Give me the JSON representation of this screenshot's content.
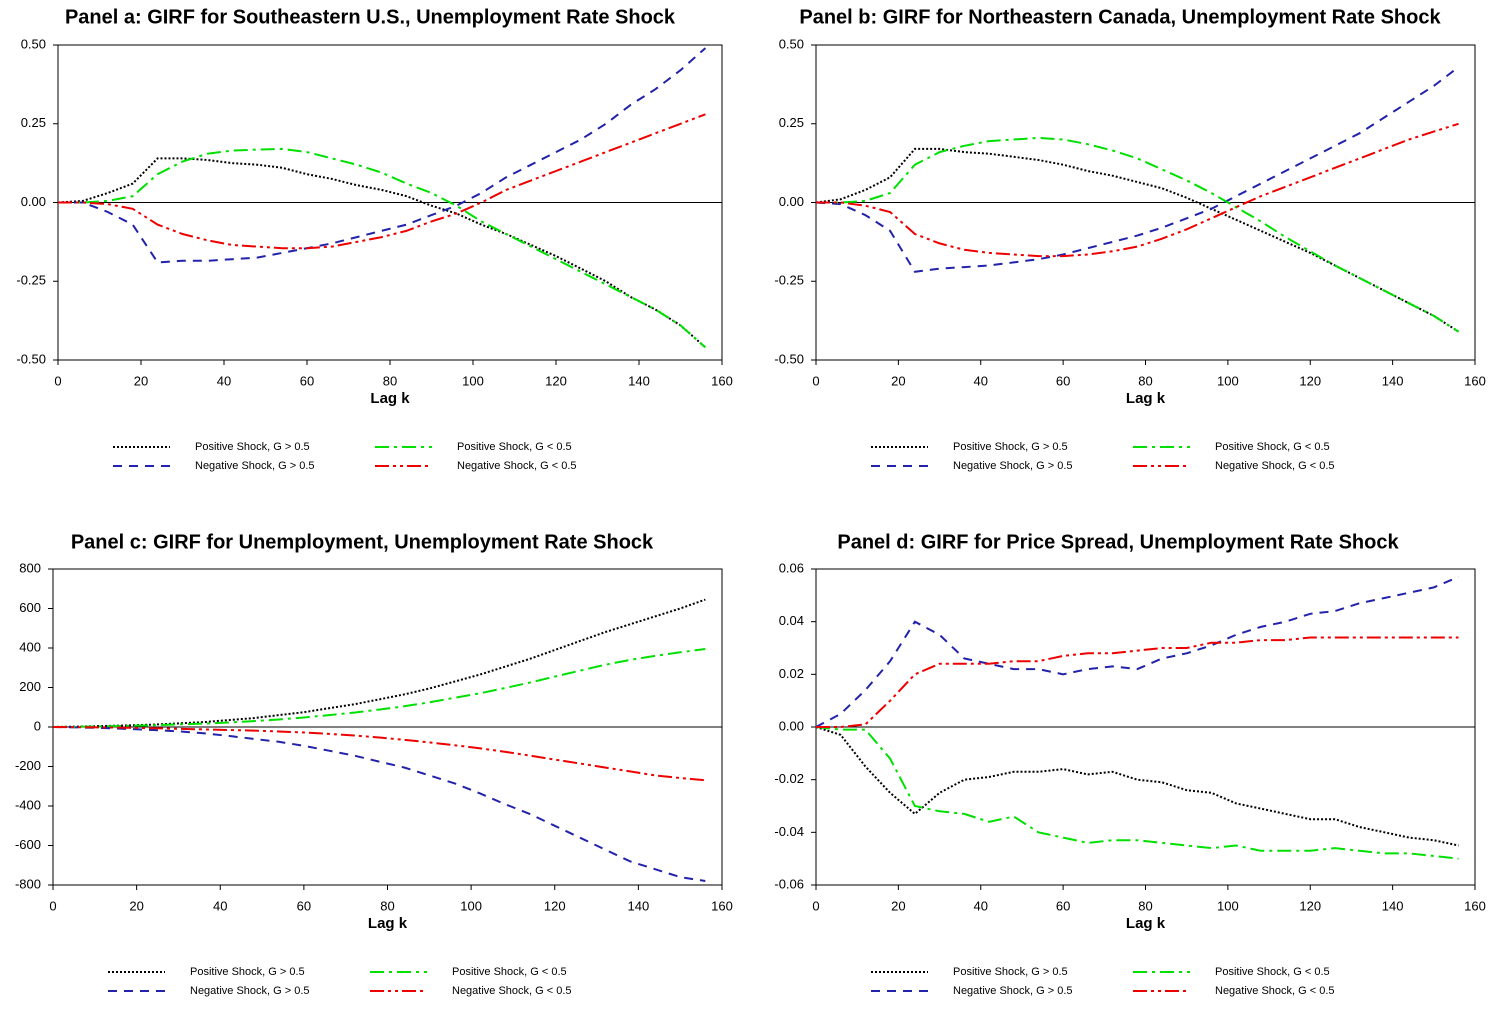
{
  "chart_data": [
    {
      "type": "line",
      "title": "Panel a: GIRF for Southeastern U.S., Unemployment Rate Shock",
      "xlabel": "Lag k",
      "x": [
        0,
        6,
        12,
        18,
        24,
        30,
        36,
        42,
        48,
        54,
        60,
        66,
        72,
        78,
        84,
        90,
        96,
        102,
        108,
        114,
        120,
        126,
        132,
        138,
        144,
        150,
        156
      ],
      "xlim": [
        0,
        160
      ],
      "xticks": [
        0,
        20,
        40,
        60,
        80,
        100,
        120,
        140,
        160
      ],
      "ylim": [
        -0.5,
        0.5
      ],
      "yticks": [
        {
          "value": 0.5,
          "label": "0.50"
        },
        0.25,
        {
          "value": 0,
          "label": "0.00"
        },
        -0.25,
        {
          "value": -0.5,
          "label": "-0.50"
        }
      ],
      "series": [
        {
          "name": "Positive Shock, G > 0.5",
          "color": "#000000",
          "style": "dotted",
          "values": [
            0,
            0.005,
            0.03,
            0.06,
            0.14,
            0.14,
            0.135,
            0.125,
            0.12,
            0.11,
            0.09,
            0.075,
            0.055,
            0.04,
            0.02,
            -0.01,
            -0.035,
            -0.07,
            -0.1,
            -0.135,
            -0.17,
            -0.21,
            -0.25,
            -0.3,
            -0.34,
            -0.39,
            -0.46
          ]
        },
        {
          "name": "Negative Shock, G > 0.5",
          "color": "#2222aa",
          "style": "dashed",
          "values": [
            0,
            0,
            -0.03,
            -0.07,
            -0.19,
            -0.185,
            -0.185,
            -0.18,
            -0.175,
            -0.16,
            -0.145,
            -0.13,
            -0.11,
            -0.09,
            -0.07,
            -0.04,
            -0.01,
            0.03,
            0.08,
            0.12,
            0.16,
            0.2,
            0.25,
            0.31,
            0.36,
            0.42,
            0.49
          ]
        },
        {
          "name": "Positive Shock, G < 0.5",
          "color": "#00e000",
          "style": "dashdot",
          "values": [
            0,
            0,
            0.005,
            0.02,
            0.09,
            0.13,
            0.155,
            0.165,
            0.168,
            0.17,
            0.16,
            0.14,
            0.12,
            0.095,
            0.06,
            0.03,
            -0.01,
            -0.06,
            -0.1,
            -0.14,
            -0.18,
            -0.22,
            -0.26,
            -0.3,
            -0.34,
            -0.39,
            -0.46
          ]
        },
        {
          "name": "Negative Shock, G < 0.5",
          "color": "#ee0000",
          "style": "dashdotdot",
          "values": [
            0,
            0,
            -0.005,
            -0.02,
            -0.07,
            -0.1,
            -0.12,
            -0.135,
            -0.14,
            -0.145,
            -0.145,
            -0.14,
            -0.125,
            -0.11,
            -0.09,
            -0.06,
            -0.035,
            0,
            0.04,
            0.07,
            0.1,
            0.13,
            0.16,
            0.19,
            0.22,
            0.25,
            0.28
          ]
        }
      ]
    },
    {
      "type": "line",
      "title": "Panel b: GIRF for Northeastern Canada, Unemployment Rate Shock",
      "xlabel": "Lag k",
      "x": [
        0,
        6,
        12,
        18,
        24,
        30,
        36,
        42,
        48,
        54,
        60,
        66,
        72,
        78,
        84,
        90,
        96,
        102,
        108,
        114,
        120,
        126,
        132,
        138,
        144,
        150,
        156
      ],
      "xlim": [
        0,
        160
      ],
      "xticks": [
        0,
        20,
        40,
        60,
        80,
        100,
        120,
        140,
        160
      ],
      "ylim": [
        -0.5,
        0.5
      ],
      "yticks": [
        {
          "value": 0.5,
          "label": "0.50"
        },
        0.25,
        {
          "value": 0,
          "label": "0.00"
        },
        -0.25,
        {
          "value": -0.5,
          "label": "-0.50"
        }
      ],
      "series": [
        {
          "name": "Positive Shock, G > 0.5",
          "color": "#000000",
          "style": "dotted",
          "values": [
            0,
            0.01,
            0.04,
            0.08,
            0.17,
            0.17,
            0.16,
            0.155,
            0.145,
            0.135,
            0.12,
            0.1,
            0.085,
            0.065,
            0.045,
            0.015,
            -0.02,
            -0.055,
            -0.09,
            -0.125,
            -0.16,
            -0.2,
            -0.24,
            -0.28,
            -0.32,
            -0.36,
            -0.41
          ]
        },
        {
          "name": "Negative Shock, G > 0.5",
          "color": "#2222aa",
          "style": "dashed",
          "values": [
            0,
            -0.005,
            -0.04,
            -0.09,
            -0.22,
            -0.21,
            -0.205,
            -0.2,
            -0.19,
            -0.18,
            -0.165,
            -0.145,
            -0.125,
            -0.105,
            -0.08,
            -0.05,
            -0.02,
            0.02,
            0.06,
            0.1,
            0.14,
            0.18,
            0.22,
            0.27,
            0.32,
            0.37,
            0.43
          ]
        },
        {
          "name": "Positive Shock, G < 0.5",
          "color": "#00e000",
          "style": "dashdot",
          "values": [
            0,
            0,
            0.005,
            0.03,
            0.12,
            0.16,
            0.18,
            0.195,
            0.2,
            0.205,
            0.2,
            0.185,
            0.165,
            0.14,
            0.105,
            0.07,
            0.03,
            -0.015,
            -0.06,
            -0.11,
            -0.155,
            -0.2,
            -0.24,
            -0.28,
            -0.32,
            -0.36,
            -0.41
          ]
        },
        {
          "name": "Negative Shock, G < 0.5",
          "color": "#ee0000",
          "style": "dashdotdot",
          "values": [
            0,
            0,
            -0.01,
            -0.03,
            -0.1,
            -0.13,
            -0.15,
            -0.16,
            -0.165,
            -0.17,
            -0.17,
            -0.165,
            -0.155,
            -0.14,
            -0.115,
            -0.085,
            -0.05,
            -0.015,
            0.02,
            0.05,
            0.08,
            0.11,
            0.14,
            0.17,
            0.2,
            0.225,
            0.25
          ]
        }
      ]
    },
    {
      "type": "line",
      "title": "Panel c: GIRF for Unemployment, Unemployment Rate Shock",
      "xlabel": "Lag k",
      "x": [
        0,
        6,
        12,
        18,
        24,
        30,
        36,
        42,
        48,
        54,
        60,
        66,
        72,
        78,
        84,
        90,
        96,
        102,
        108,
        114,
        120,
        126,
        132,
        138,
        144,
        150,
        156
      ],
      "xlim": [
        0,
        160
      ],
      "xticks": [
        0,
        20,
        40,
        60,
        80,
        100,
        120,
        140,
        160
      ],
      "ylim": [
        -800,
        800
      ],
      "yticks": [
        800,
        600,
        400,
        200,
        0,
        -200,
        -400,
        -600,
        -800
      ],
      "series": [
        {
          "name": "Positive Shock, G > 0.5",
          "color": "#000000",
          "style": "dotted",
          "values": [
            0,
            2,
            5,
            8,
            12,
            18,
            25,
            35,
            45,
            60,
            75,
            95,
            115,
            140,
            165,
            195,
            230,
            265,
            305,
            345,
            390,
            435,
            480,
            520,
            560,
            600,
            645
          ]
        },
        {
          "name": "Negative Shock, G > 0.5",
          "color": "#2222aa",
          "style": "dashed",
          "values": [
            0,
            -2,
            -5,
            -10,
            -15,
            -22,
            -32,
            -45,
            -60,
            -75,
            -95,
            -120,
            -145,
            -175,
            -205,
            -245,
            -285,
            -335,
            -390,
            -440,
            -500,
            -560,
            -620,
            -680,
            -720,
            -760,
            -780
          ]
        },
        {
          "name": "Positive Shock, G < 0.5",
          "color": "#00e000",
          "style": "dashdot",
          "values": [
            0,
            1,
            3,
            6,
            9,
            13,
            17,
            23,
            30,
            38,
            48,
            60,
            73,
            88,
            105,
            125,
            148,
            170,
            197,
            225,
            255,
            285,
            315,
            340,
            360,
            378,
            395
          ]
        },
        {
          "name": "Negative Shock, G < 0.5",
          "color": "#ee0000",
          "style": "dashdotdot",
          "values": [
            0,
            -1,
            -2,
            -4,
            -6,
            -9,
            -12,
            -15,
            -18,
            -23,
            -28,
            -35,
            -43,
            -53,
            -65,
            -78,
            -92,
            -108,
            -125,
            -145,
            -165,
            -185,
            -205,
            -225,
            -245,
            -258,
            -270
          ]
        }
      ]
    },
    {
      "type": "line",
      "title": "Panel d: GIRF for Price Spread, Unemployment Rate Shock",
      "xlabel": "Lag k",
      "x": [
        0,
        6,
        12,
        18,
        24,
        30,
        36,
        42,
        48,
        54,
        60,
        66,
        72,
        78,
        84,
        90,
        96,
        102,
        108,
        114,
        120,
        126,
        132,
        138,
        144,
        150,
        156
      ],
      "xlim": [
        0,
        160
      ],
      "xticks": [
        0,
        20,
        40,
        60,
        80,
        100,
        120,
        140,
        160
      ],
      "ylim": [
        -0.06,
        0.06
      ],
      "yticks": [
        0.06,
        0.04,
        0.02,
        {
          "value": 0,
          "label": "0.00"
        },
        -0.02,
        -0.04,
        -0.06
      ],
      "series": [
        {
          "name": "Positive Shock, G > 0.5",
          "color": "#000000",
          "style": "dotted",
          "values": [
            0,
            -0.003,
            -0.015,
            -0.025,
            -0.033,
            -0.025,
            -0.02,
            -0.019,
            -0.017,
            -0.017,
            -0.016,
            -0.018,
            -0.017,
            -0.02,
            -0.021,
            -0.024,
            -0.025,
            -0.029,
            -0.031,
            -0.033,
            -0.035,
            -0.035,
            -0.038,
            -0.04,
            -0.042,
            -0.043,
            -0.045
          ]
        },
        {
          "name": "Negative Shock, G > 0.5",
          "color": "#2222aa",
          "style": "dashed",
          "values": [
            0,
            0.005,
            0.014,
            0.025,
            0.04,
            0.035,
            0.026,
            0.024,
            0.022,
            0.022,
            0.02,
            0.022,
            0.023,
            0.022,
            0.026,
            0.028,
            0.031,
            0.035,
            0.038,
            0.04,
            0.043,
            0.044,
            0.047,
            0.049,
            0.051,
            0.053,
            0.057
          ]
        },
        {
          "name": "Positive Shock, G < 0.5",
          "color": "#00e000",
          "style": "dashdot",
          "values": [
            0,
            -0.001,
            -0.001,
            -0.012,
            -0.03,
            -0.032,
            -0.033,
            -0.036,
            -0.034,
            -0.04,
            -0.042,
            -0.044,
            -0.043,
            -0.043,
            -0.044,
            -0.045,
            -0.046,
            -0.045,
            -0.047,
            -0.047,
            -0.047,
            -0.046,
            -0.047,
            -0.048,
            -0.048,
            -0.049,
            -0.05
          ]
        },
        {
          "name": "Negative Shock, G < 0.5",
          "color": "#ee0000",
          "style": "dashdotdot",
          "values": [
            0,
            0,
            0.001,
            0.01,
            0.02,
            0.024,
            0.024,
            0.024,
            0.025,
            0.025,
            0.027,
            0.028,
            0.028,
            0.029,
            0.03,
            0.03,
            0.032,
            0.032,
            0.033,
            0.033,
            0.034,
            0.034,
            0.034,
            0.034,
            0.034,
            0.034,
            0.034
          ]
        }
      ]
    }
  ]
}
